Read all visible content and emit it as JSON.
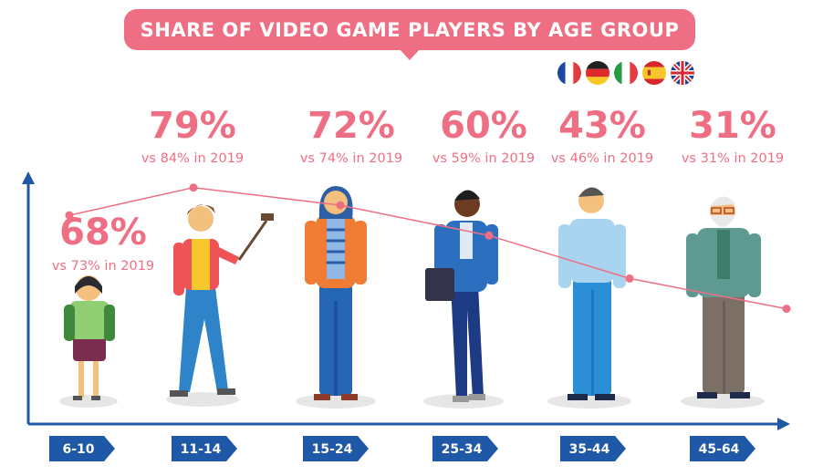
{
  "colors": {
    "accent": "#ee6f83",
    "axis": "#1f58a6",
    "tag": "#1f58a6"
  },
  "flags": [
    "flag-france-icon",
    "flag-germany-icon",
    "flag-italy-icon",
    "flag-spain-icon",
    "flag-uk-icon"
  ],
  "chart_data": {
    "type": "line",
    "title": "SHARE OF VIDEO GAME PLAYERS BY AGE GROUP",
    "categories": [
      "6-10",
      "11-14",
      "15-24",
      "25-34",
      "35-44",
      "45-64"
    ],
    "series": [
      {
        "values": [
          68,
          79,
          72,
          60,
          43,
          31
        ]
      }
    ],
    "value_labels": [
      "68%",
      "79%",
      "72%",
      "60%",
      "43%",
      "31%"
    ],
    "comparison_labels": [
      "vs 73% in 2019",
      "vs 84% in 2019",
      "vs 74% in 2019",
      "vs 59% in 2019",
      "vs 46% in 2019",
      "vs 31% in 2019"
    ],
    "grid": false,
    "legend": "none"
  }
}
